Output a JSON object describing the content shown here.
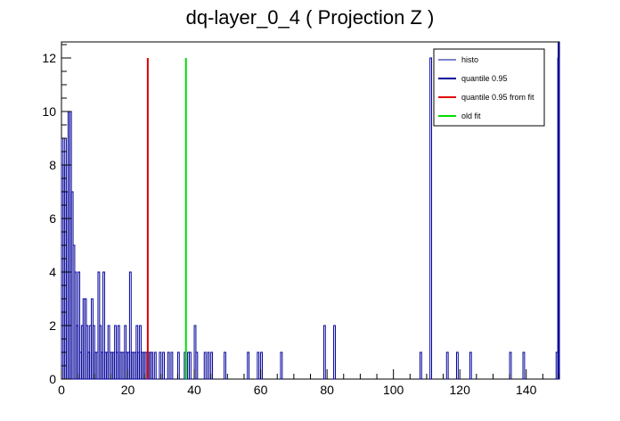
{
  "chart_data": {
    "type": "bar",
    "title": "dq-layer_0_4 ( Projection Z )",
    "xlabel": "",
    "ylabel": "",
    "xlim": [
      0,
      150
    ],
    "ylim": [
      0,
      12.6
    ],
    "grid": false,
    "legend_placement": "top-right",
    "x_ticks": [
      0,
      20,
      40,
      60,
      80,
      100,
      120,
      140
    ],
    "y_ticks": [
      0,
      2,
      4,
      6,
      8,
      10,
      12
    ],
    "bin_width": 0.5,
    "colors": {
      "histo": "#000099",
      "quantile": "#000099",
      "quantile_fit": "#e00000",
      "old_fit": "#00dd00"
    },
    "series": [
      {
        "name": "histo",
        "bins": [
          [
            0.0,
            9
          ],
          [
            0.5,
            8
          ],
          [
            1.0,
            9
          ],
          [
            1.5,
            7
          ],
          [
            2.0,
            10
          ],
          [
            2.5,
            10
          ],
          [
            3.0,
            7
          ],
          [
            3.5,
            5
          ],
          [
            4.0,
            4
          ],
          [
            4.5,
            2
          ],
          [
            5.0,
            4
          ],
          [
            5.5,
            1
          ],
          [
            6.0,
            2
          ],
          [
            6.5,
            3
          ],
          [
            7.0,
            3
          ],
          [
            7.5,
            2
          ],
          [
            8.0,
            1
          ],
          [
            8.5,
            2
          ],
          [
            9.0,
            3
          ],
          [
            9.5,
            2
          ],
          [
            10.0,
            1
          ],
          [
            10.5,
            1
          ],
          [
            11.0,
            4
          ],
          [
            11.5,
            2
          ],
          [
            12.0,
            1
          ],
          [
            12.5,
            4
          ],
          [
            13.0,
            1
          ],
          [
            13.5,
            1
          ],
          [
            14.0,
            2
          ],
          [
            14.5,
            1
          ],
          [
            15.0,
            1
          ],
          [
            15.5,
            1
          ],
          [
            16.0,
            2
          ],
          [
            16.5,
            1
          ],
          [
            17.0,
            2
          ],
          [
            17.5,
            1
          ],
          [
            18.0,
            1
          ],
          [
            18.5,
            1
          ],
          [
            19.0,
            2
          ],
          [
            19.5,
            1
          ],
          [
            20.0,
            1
          ],
          [
            20.5,
            4
          ],
          [
            21.0,
            1
          ],
          [
            21.5,
            1
          ],
          [
            22.0,
            1
          ],
          [
            22.5,
            2
          ],
          [
            23.0,
            1
          ],
          [
            23.5,
            2
          ],
          [
            24.0,
            1
          ],
          [
            24.5,
            1
          ],
          [
            25.0,
            1
          ],
          [
            25.5,
            1
          ],
          [
            26.0,
            1
          ],
          [
            26.5,
            1
          ],
          [
            27.0,
            1
          ],
          [
            28.0,
            1
          ],
          [
            29.5,
            1
          ],
          [
            30.5,
            1
          ],
          [
            32.0,
            1
          ],
          [
            33.0,
            1
          ],
          [
            35.0,
            1
          ],
          [
            37.0,
            1
          ],
          [
            38.0,
            1
          ],
          [
            38.5,
            1
          ],
          [
            40.0,
            2
          ],
          [
            40.5,
            1
          ],
          [
            43.0,
            1
          ],
          [
            44.0,
            1
          ],
          [
            45.0,
            1
          ],
          [
            49.0,
            1
          ],
          [
            56.0,
            1
          ],
          [
            59.0,
            1
          ],
          [
            60.0,
            1
          ],
          [
            66.0,
            1
          ],
          [
            79.0,
            2
          ],
          [
            82.0,
            2
          ],
          [
            108.0,
            1
          ],
          [
            111.0,
            12
          ],
          [
            116.0,
            1
          ],
          [
            119.0,
            1
          ],
          [
            123.0,
            1
          ],
          [
            135.0,
            1
          ],
          [
            139.0,
            1
          ],
          [
            149.0,
            1
          ],
          [
            149.5,
            12
          ]
        ]
      },
      {
        "name": "quantile 0.95",
        "x": 150
      },
      {
        "name": "quantile 0.95 from fit",
        "x": 26,
        "y": 12
      },
      {
        "name": "old fit",
        "x": 37.5,
        "y": 12
      }
    ]
  }
}
